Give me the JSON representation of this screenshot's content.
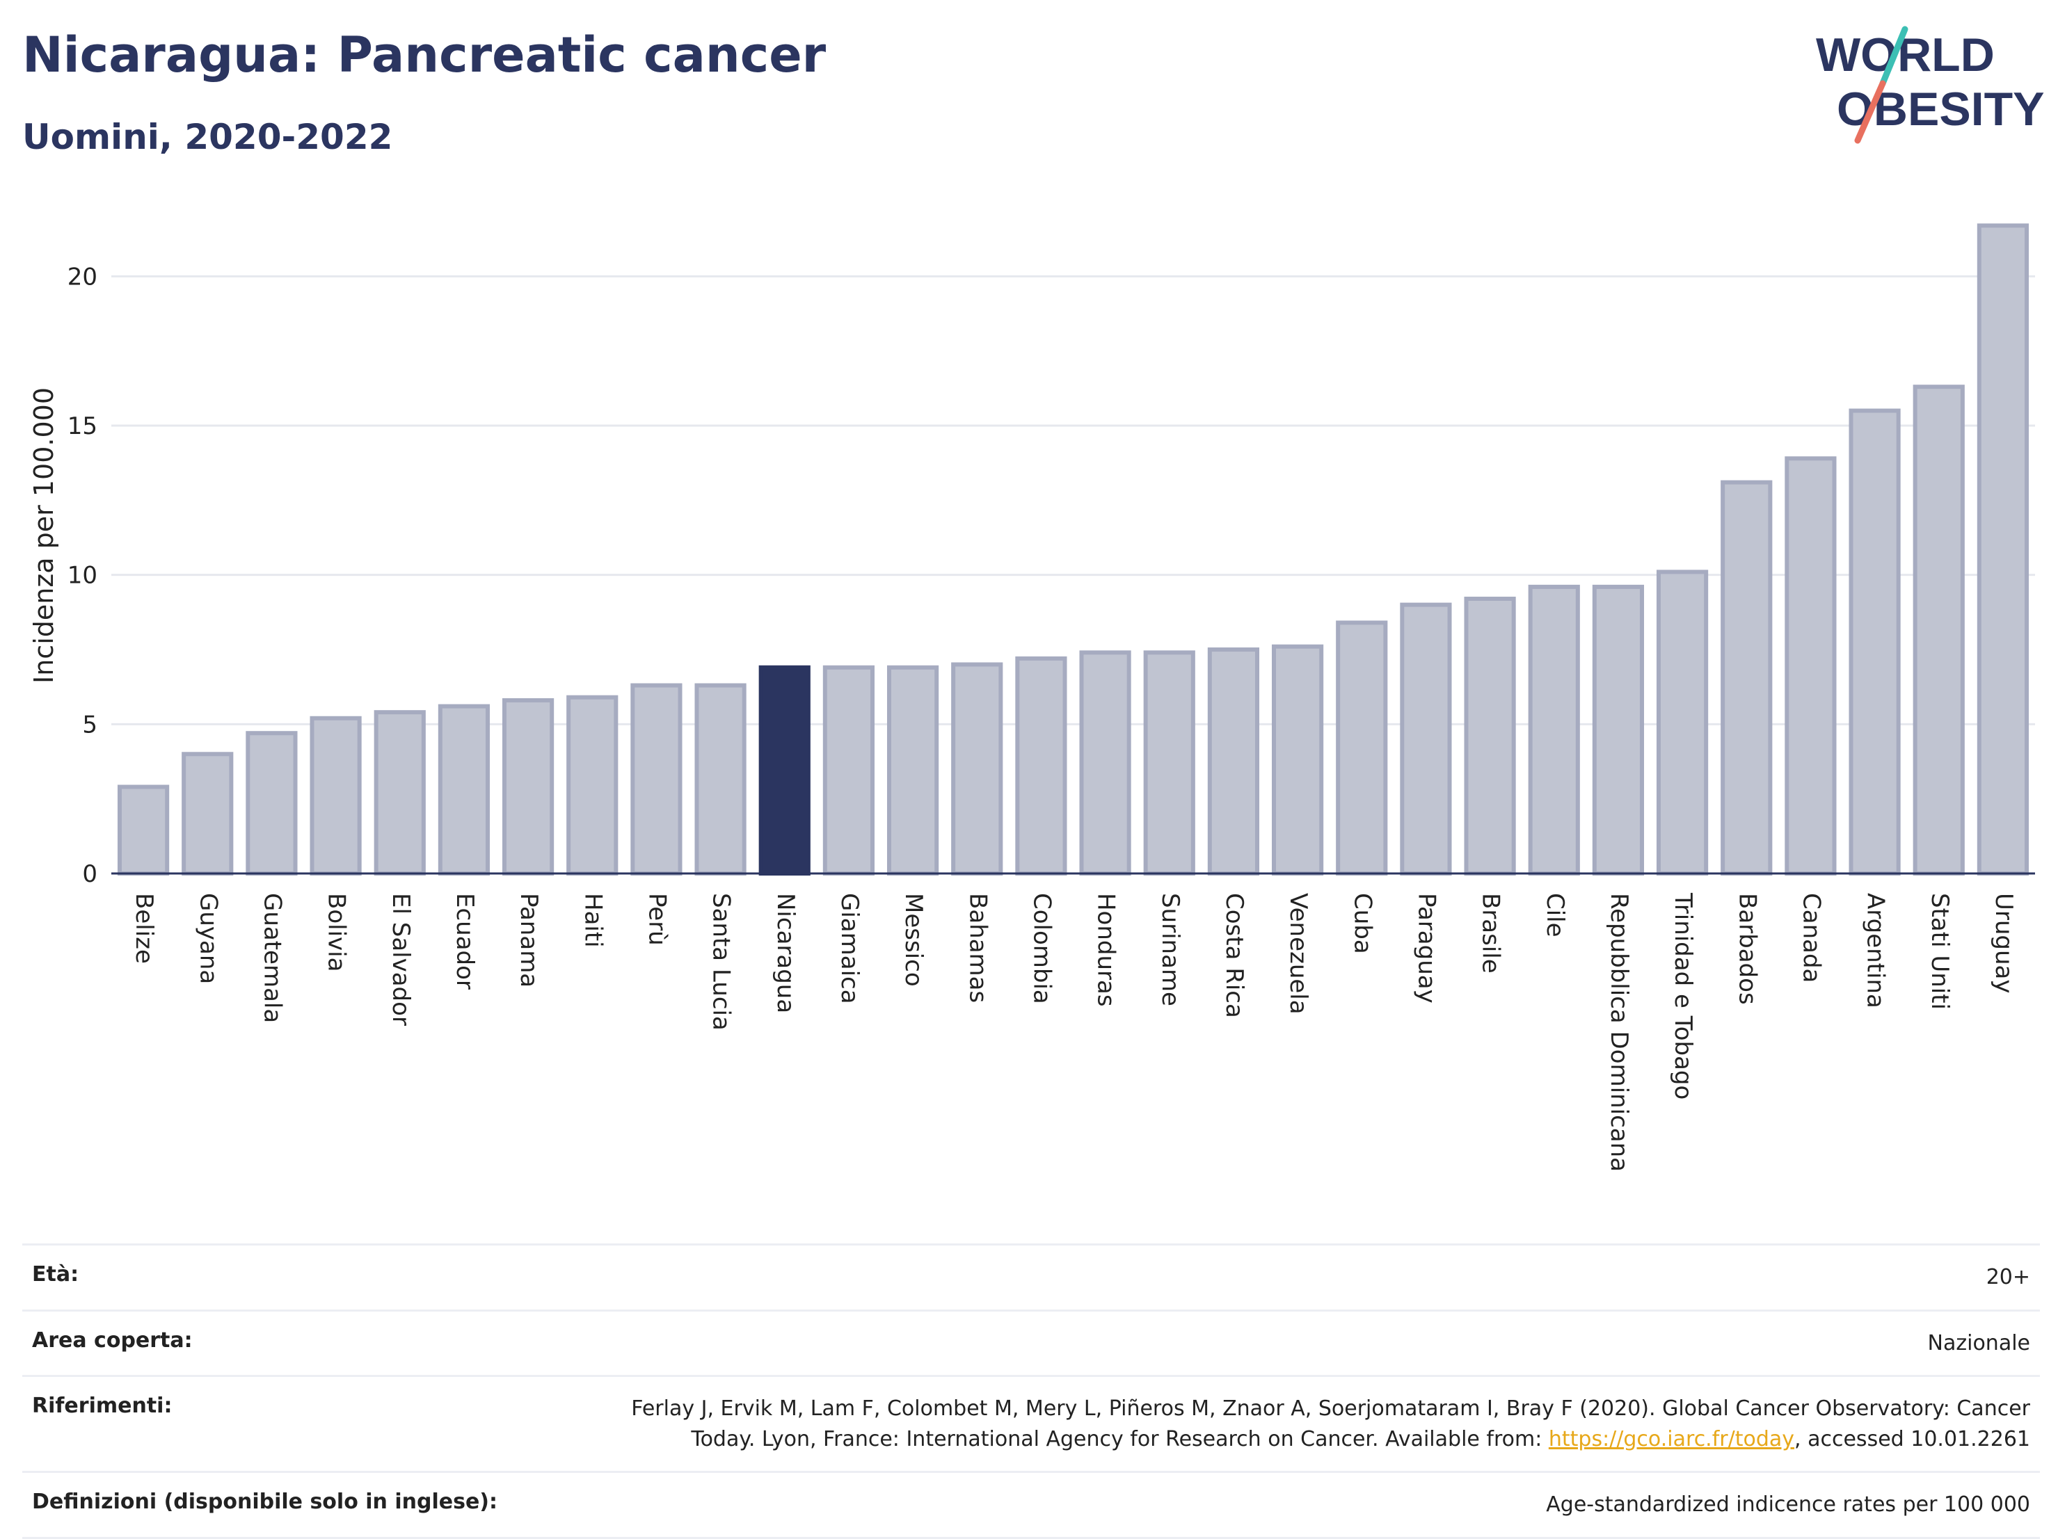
{
  "header": {
    "title": "Nicaragua: Pancreatic cancer",
    "subtitle": "Uomini, 2020-2022"
  },
  "logo": {
    "line1": "WORLD",
    "line2": "OBESITY",
    "colors": {
      "text": "#2b3560",
      "slash_top": "#3cbfb4",
      "slash_bottom": "#e8705f"
    }
  },
  "chart_data": {
    "type": "bar",
    "ylabel": "Incidenza per 100.000",
    "ylim": [
      0,
      22.5
    ],
    "yticks": [
      0,
      5,
      10,
      15,
      20
    ],
    "grid": true,
    "highlight": "Nicaragua",
    "colors": {
      "bar": "#c0c4d1",
      "bar_border": "#a6abc0",
      "highlight": "#2b3560",
      "grid": "#e6e8ee",
      "axis": "#2b3560"
    },
    "categories": [
      "Belize",
      "Guyana",
      "Guatemala",
      "Bolivia",
      "El Salvador",
      "Ecuador",
      "Panama",
      "Haiti",
      "Perù",
      "Santa Lucia",
      "Nicaragua",
      "Giamaica",
      "Messico",
      "Bahamas",
      "Colombia",
      "Honduras",
      "Suriname",
      "Costa Rica",
      "Venezuela",
      "Cuba",
      "Paraguay",
      "Brasile",
      "Cile",
      "Repubblica Dominicana",
      "Trinidad e Tobago",
      "Barbados",
      "Canada",
      "Argentina",
      "Stati Uniti",
      "Uruguay"
    ],
    "values": [
      2.9,
      4.0,
      4.7,
      5.2,
      5.4,
      5.6,
      5.8,
      5.9,
      6.3,
      6.3,
      6.9,
      6.9,
      6.9,
      7.0,
      7.2,
      7.4,
      7.4,
      7.5,
      7.6,
      8.4,
      9.0,
      9.2,
      9.6,
      9.6,
      10.1,
      13.1,
      13.9,
      15.5,
      16.3,
      21.7
    ]
  },
  "info": {
    "age_label": "Età:",
    "age_value": "20+",
    "area_label": "Area coperta:",
    "area_value": "Nazionale",
    "refs_label": "Riferimenti:",
    "refs_text_1": "Ferlay J, Ervik M, Lam F, Colombet M, Mery L, Piñeros M, Znaor A, Soerjomataram I, Bray F (2020). Global Cancer Observatory: Cancer",
    "refs_text_2": "Today. Lyon, France: International Agency for Research on Cancer. Available from: ",
    "refs_link": "https://gco.iarc.fr/today",
    "refs_text_3": ", accessed 10.01.2261",
    "defs_label": "Definizioni (disponibile solo in inglese):",
    "defs_value": "Age-standardized indicence rates per 100 000"
  }
}
